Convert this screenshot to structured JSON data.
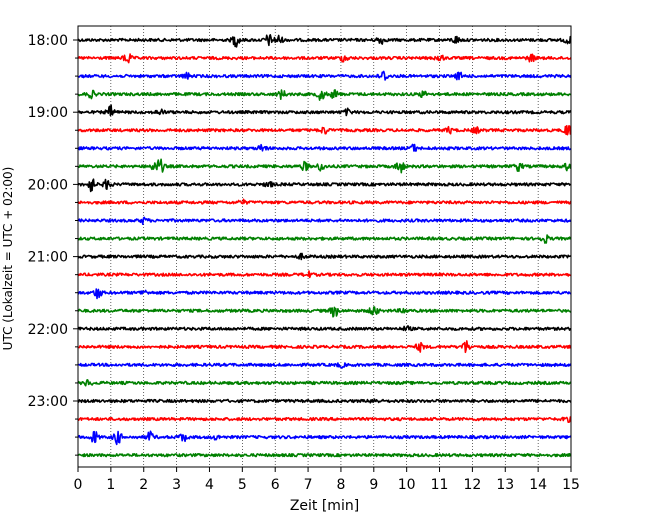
{
  "chart_data": {
    "type": "line",
    "title": "",
    "xlabel": "Zeit  [min]",
    "ylabel": "UTC (Lokalzeit = UTC + 02:00)",
    "xlim": [
      0,
      15
    ],
    "xticks": [
      0,
      1,
      2,
      3,
      4,
      5,
      6,
      7,
      8,
      9,
      10,
      11,
      12,
      13,
      14,
      15
    ],
    "x_grid": "dotted vertical lines at each minute",
    "y_tick_labels": [
      "18:00",
      "19:00",
      "20:00",
      "21:00",
      "22:00",
      "23:00"
    ],
    "trace_interval_minutes": 15,
    "trace_colors_cycle": [
      "#000000",
      "#ff0000",
      "#0000ff",
      "#008000"
    ],
    "traces": [
      {
        "start": "18:00",
        "color": "#000000",
        "events": [
          [
            4.8,
            0.9
          ],
          [
            5.8,
            0.8
          ],
          [
            6.1,
            0.7
          ],
          [
            9.2,
            0.6
          ],
          [
            11.5,
            0.5
          ],
          [
            14.9,
            0.5
          ]
        ]
      },
      {
        "start": "18:15",
        "color": "#ff0000",
        "events": [
          [
            1.5,
            0.8
          ],
          [
            8.1,
            0.5
          ],
          [
            11.0,
            0.5
          ],
          [
            13.8,
            0.5
          ]
        ]
      },
      {
        "start": "18:30",
        "color": "#0000ff",
        "events": [
          [
            3.3,
            0.4
          ],
          [
            9.3,
            0.8
          ],
          [
            11.6,
            0.5
          ]
        ]
      },
      {
        "start": "18:45",
        "color": "#008000",
        "events": [
          [
            0.4,
            0.5
          ],
          [
            6.2,
            0.6
          ],
          [
            7.4,
            0.9
          ],
          [
            7.8,
            0.6
          ],
          [
            10.5,
            0.4
          ]
        ]
      },
      {
        "start": "19:00",
        "color": "#000000",
        "events": [
          [
            1.0,
            0.9
          ],
          [
            2.5,
            0.4
          ],
          [
            8.2,
            0.4
          ]
        ]
      },
      {
        "start": "19:15",
        "color": "#ff0000",
        "events": [
          [
            7.5,
            0.5
          ],
          [
            11.3,
            0.4
          ],
          [
            12.1,
            0.4
          ],
          [
            14.9,
            0.9
          ]
        ]
      },
      {
        "start": "19:30",
        "color": "#0000ff",
        "events": [
          [
            5.6,
            0.5
          ],
          [
            10.2,
            0.5
          ]
        ]
      },
      {
        "start": "19:45",
        "color": "#008000",
        "events": [
          [
            2.5,
            1.0
          ],
          [
            2.3,
            0.5
          ],
          [
            6.9,
            0.6
          ],
          [
            7.4,
            0.6
          ],
          [
            9.8,
            1.0
          ],
          [
            13.4,
            0.6
          ],
          [
            14.9,
            0.5
          ]
        ]
      },
      {
        "start": "20:00",
        "color": "#000000",
        "events": [
          [
            0.4,
            1.0
          ],
          [
            0.9,
            0.8
          ],
          [
            5.8,
            0.4
          ]
        ]
      },
      {
        "start": "20:15",
        "color": "#ff0000",
        "events": [
          [
            5.0,
            0.3
          ]
        ]
      },
      {
        "start": "20:30",
        "color": "#0000ff",
        "events": [
          [
            2.0,
            0.4
          ]
        ]
      },
      {
        "start": "20:45",
        "color": "#008000",
        "events": [
          [
            14.2,
            0.6
          ]
        ]
      },
      {
        "start": "21:00",
        "color": "#000000",
        "events": [
          [
            6.8,
            0.3
          ]
        ]
      },
      {
        "start": "21:15",
        "color": "#ff0000",
        "events": [
          [
            7.0,
            0.4
          ]
        ]
      },
      {
        "start": "21:30",
        "color": "#0000ff",
        "events": [
          [
            0.6,
            0.8
          ],
          [
            2.0,
            0.3
          ]
        ]
      },
      {
        "start": "21:45",
        "color": "#008000",
        "events": [
          [
            7.8,
            0.9
          ],
          [
            9.0,
            0.8
          ],
          [
            9.9,
            0.3
          ]
        ]
      },
      {
        "start": "22:00",
        "color": "#000000",
        "events": [
          [
            10.0,
            0.3
          ]
        ]
      },
      {
        "start": "22:15",
        "color": "#ff0000",
        "events": [
          [
            10.4,
            0.6
          ],
          [
            11.8,
            0.9
          ]
        ]
      },
      {
        "start": "22:30",
        "color": "#0000ff",
        "events": [
          [
            8.0,
            0.3
          ]
        ]
      },
      {
        "start": "22:45",
        "color": "#008000",
        "events": [
          [
            0.3,
            0.4
          ]
        ]
      },
      {
        "start": "23:00",
        "color": "#000000",
        "events": [
          [
            9.0,
            0.3
          ]
        ]
      },
      {
        "start": "23:15",
        "color": "#ff0000",
        "events": [
          [
            14.9,
            0.3
          ]
        ]
      },
      {
        "start": "23:30",
        "color": "#0000ff",
        "events": [
          [
            0.5,
            0.9
          ],
          [
            1.2,
            1.0
          ],
          [
            2.2,
            0.7
          ],
          [
            3.2,
            0.6
          ],
          [
            4.2,
            0.3
          ]
        ]
      },
      {
        "start": "23:45",
        "color": "#008000",
        "events": []
      }
    ]
  }
}
